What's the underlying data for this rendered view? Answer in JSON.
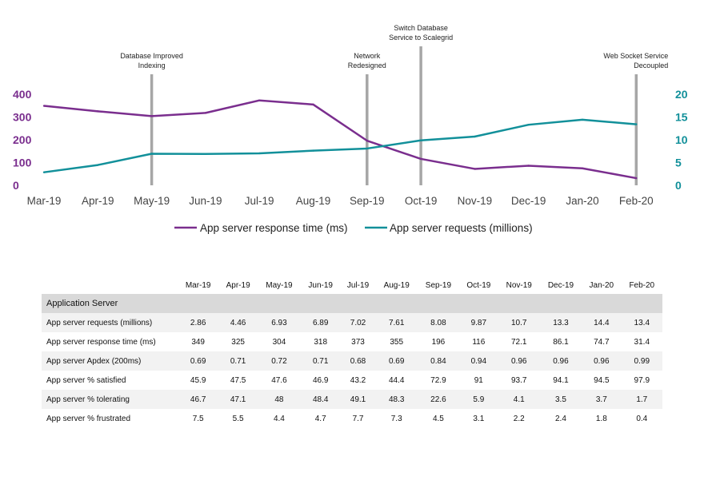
{
  "chart_data": {
    "type": "line",
    "categories": [
      "Mar-19",
      "Apr-19",
      "May-19",
      "Jun-19",
      "Jul-19",
      "Aug-19",
      "Sep-19",
      "Oct-19",
      "Nov-19",
      "Dec-19",
      "Jan-20",
      "Feb-20"
    ],
    "series": [
      {
        "name": "App server response time (ms)",
        "axis": "left",
        "color": "#7a2e8e",
        "values": [
          349,
          325,
          304,
          318,
          373,
          355,
          196,
          116,
          72.1,
          86.1,
          74.7,
          31.4
        ]
      },
      {
        "name": "App server requests (millions)",
        "axis": "right",
        "color": "#12909a",
        "values": [
          2.86,
          4.46,
          6.93,
          6.89,
          7.02,
          7.61,
          8.08,
          9.87,
          10.7,
          13.3,
          14.4,
          13.4
        ]
      }
    ],
    "ylim_left": [
      0,
      400
    ],
    "yticks_left": [
      "0",
      "100",
      "200",
      "300",
      "400"
    ],
    "ylim_right": [
      0,
      20
    ],
    "yticks_right": [
      "0",
      "5",
      "10",
      "15",
      "20"
    ],
    "annotations": [
      {
        "category": "May-19",
        "lines": [
          "Database Improved",
          "Indexing"
        ]
      },
      {
        "category": "Sep-19",
        "lines": [
          "Network",
          "Redesigned"
        ]
      },
      {
        "category": "Oct-19",
        "lines": [
          "Switch Database",
          "Service to Scalegrid"
        ]
      },
      {
        "category": "Feb-20",
        "lines": [
          "Web Socket Service",
          "Decoupled"
        ]
      }
    ],
    "legend_position": "bottom",
    "grid": false
  },
  "table": {
    "columns": [
      "Mar-19",
      "Apr-19",
      "May-19",
      "Jun-19",
      "Jul-19",
      "Aug-19",
      "Sep-19",
      "Oct-19",
      "Nov-19",
      "Dec-19",
      "Jan-20",
      "Feb-20"
    ],
    "section_label": "Application Server",
    "rows": [
      {
        "label": "App server requests (millions)",
        "values": [
          "2.86",
          "4.46",
          "6.93",
          "6.89",
          "7.02",
          "7.61",
          "8.08",
          "9.87",
          "10.7",
          "13.3",
          "14.4",
          "13.4"
        ]
      },
      {
        "label": "App server response time (ms)",
        "values": [
          "349",
          "325",
          "304",
          "318",
          "373",
          "355",
          "196",
          "116",
          "72.1",
          "86.1",
          "74.7",
          "31.4"
        ]
      },
      {
        "label": "App server Apdex (200ms)",
        "values": [
          "0.69",
          "0.71",
          "0.72",
          "0.71",
          "0.68",
          "0.69",
          "0.84",
          "0.94",
          "0.96",
          "0.96",
          "0.96",
          "0.99"
        ]
      },
      {
        "label": "App server % satisfied",
        "values": [
          "45.9",
          "47.5",
          "47.6",
          "46.9",
          "43.2",
          "44.4",
          "72.9",
          "91",
          "93.7",
          "94.1",
          "94.5",
          "97.9"
        ]
      },
      {
        "label": "App server % tolerating",
        "values": [
          "46.7",
          "47.1",
          "48",
          "48.4",
          "49.1",
          "48.3",
          "22.6",
          "5.9",
          "4.1",
          "3.5",
          "3.7",
          "1.7"
        ]
      },
      {
        "label": "App server % frustrated",
        "values": [
          "7.5",
          "5.5",
          "4.4",
          "4.7",
          "7.7",
          "7.3",
          "4.5",
          "3.1",
          "2.2",
          "2.4",
          "1.8",
          "0.4"
        ]
      }
    ]
  }
}
